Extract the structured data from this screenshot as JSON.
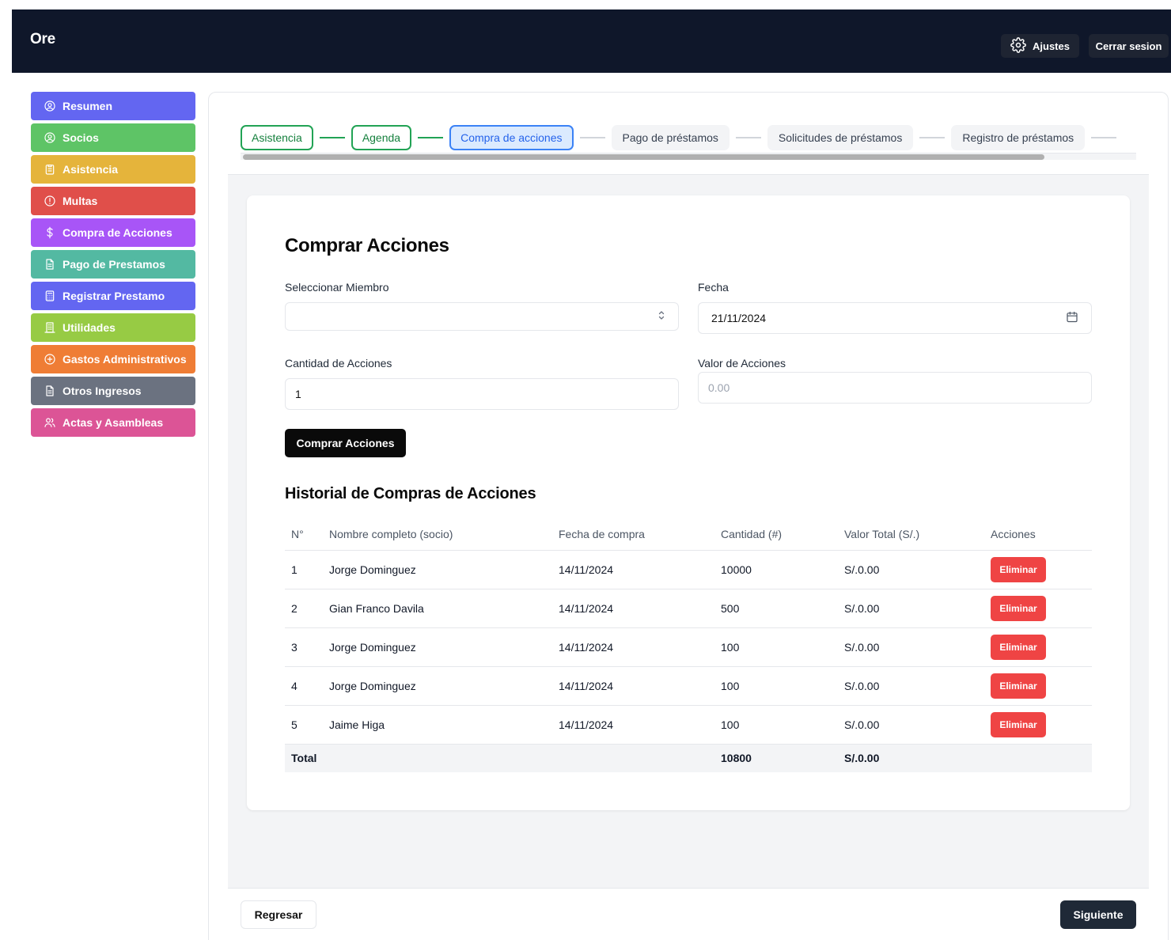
{
  "app": {
    "title": "Ore"
  },
  "header": {
    "settings_label": "Ajustes",
    "logout_label": "Cerrar sesion"
  },
  "sidebar": {
    "items": [
      {
        "label": "Resumen",
        "icon": "user-circle-icon",
        "color": "#6366f1"
      },
      {
        "label": "Socios",
        "icon": "user-circle-icon",
        "color": "#5ec466"
      },
      {
        "label": "Asistencia",
        "icon": "clipboard-icon",
        "color": "#e5b43b"
      },
      {
        "label": "Multas",
        "icon": "alert-circle-icon",
        "color": "#e04f4a"
      },
      {
        "label": "Compra de Acciones",
        "icon": "dollar-icon",
        "color": "#a855f7"
      },
      {
        "label": "Pago de Prestamos",
        "icon": "document-icon",
        "color": "#53b9a2"
      },
      {
        "label": "Registrar Prestamo",
        "icon": "calculator-icon",
        "color": "#6366f1"
      },
      {
        "label": "Utilidades",
        "icon": "building-icon",
        "color": "#97cb44"
      },
      {
        "label": "Gastos Administrativos",
        "icon": "plus-circle-icon",
        "color": "#ef7d35"
      },
      {
        "label": "Otros Ingresos",
        "icon": "document-icon",
        "color": "#6b7280"
      },
      {
        "label": "Actas y Asambleas",
        "icon": "users-icon",
        "color": "#dc5496"
      }
    ]
  },
  "stepper": {
    "steps": [
      {
        "label": "Asistencia",
        "state": "done"
      },
      {
        "label": "Agenda",
        "state": "done"
      },
      {
        "label": "Compra de acciones",
        "state": "active"
      },
      {
        "label": "Pago de préstamos",
        "state": "pending"
      },
      {
        "label": "Solicitudes de préstamos",
        "state": "pending"
      },
      {
        "label": "Registro de préstamos",
        "state": "pending"
      }
    ]
  },
  "form": {
    "title": "Comprar Acciones",
    "member_label": "Seleccionar Miembro",
    "member_value": "",
    "date_label": "Fecha",
    "date_value": "21/11/2024",
    "qty_label": "Cantidad de Acciones",
    "qty_value": "1",
    "value_label": "Valor de Acciones",
    "value_value": "0.00",
    "submit_label": "Comprar Acciones"
  },
  "history": {
    "title": "Historial de Compras de Acciones",
    "columns": [
      "N°",
      "Nombre completo (socio)",
      "Fecha de compra",
      "Cantidad (#)",
      "Valor Total (S/.)",
      "Acciones"
    ],
    "rows": [
      {
        "n": "1",
        "name": "Jorge Dominguez",
        "date": "14/11/2024",
        "qty": "10000",
        "total": "S/.0.00",
        "action": "Eliminar"
      },
      {
        "n": "2",
        "name": "Gian Franco Davila",
        "date": "14/11/2024",
        "qty": "500",
        "total": "S/.0.00",
        "action": "Eliminar"
      },
      {
        "n": "3",
        "name": "Jorge Dominguez",
        "date": "14/11/2024",
        "qty": "100",
        "total": "S/.0.00",
        "action": "Eliminar"
      },
      {
        "n": "4",
        "name": "Jorge Dominguez",
        "date": "14/11/2024",
        "qty": "100",
        "total": "S/.0.00",
        "action": "Eliminar"
      },
      {
        "n": "5",
        "name": "Jaime Higa",
        "date": "14/11/2024",
        "qty": "100",
        "total": "S/.0.00",
        "action": "Eliminar"
      }
    ],
    "total": {
      "label": "Total",
      "qty": "10800",
      "total": "S/.0.00"
    }
  },
  "footer": {
    "back_label": "Regresar",
    "next_label": "Siguiente"
  }
}
